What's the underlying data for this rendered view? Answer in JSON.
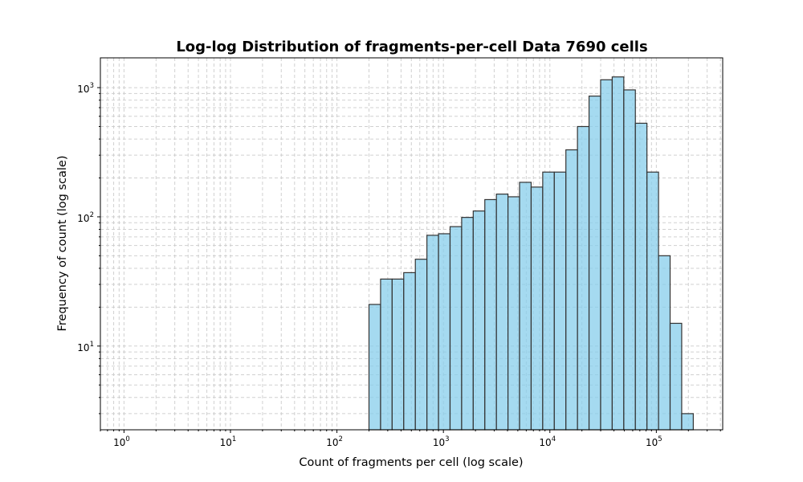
{
  "chart_data": {
    "type": "bar",
    "title": "Log-log Distribution of fragments-per-cell Data 7690 cells",
    "xlabel": "Count of fragments per cell (log scale)",
    "ylabel": "Frequency of count (log scale)",
    "xscale": "log",
    "yscale": "log",
    "xlim": [
      0.6,
      420000
    ],
    "ylim": [
      2.25,
      1700
    ],
    "grid": true,
    "bar_color": "#87CEEB",
    "edge_color": "#333333",
    "x_ticks": [
      {
        "base": "10",
        "exp": "0",
        "value": 1
      },
      {
        "base": "10",
        "exp": "1",
        "value": 10
      },
      {
        "base": "10",
        "exp": "2",
        "value": 100
      },
      {
        "base": "10",
        "exp": "3",
        "value": 1000
      },
      {
        "base": "10",
        "exp": "4",
        "value": 10000
      },
      {
        "base": "10",
        "exp": "5",
        "value": 100000
      }
    ],
    "y_ticks": [
      {
        "base": "10",
        "exp": "1",
        "value": 10
      },
      {
        "base": "10",
        "exp": "2",
        "value": 100
      },
      {
        "base": "10",
        "exp": "3",
        "value": 1000
      }
    ],
    "bins": [
      {
        "x0": 200,
        "x1": 257,
        "count": 21
      },
      {
        "x0": 257,
        "x1": 330,
        "count": 33
      },
      {
        "x0": 330,
        "x1": 424,
        "count": 33
      },
      {
        "x0": 424,
        "x1": 545,
        "count": 37
      },
      {
        "x0": 545,
        "x1": 700,
        "count": 47
      },
      {
        "x0": 700,
        "x1": 899,
        "count": 72
      },
      {
        "x0": 899,
        "x1": 1155,
        "count": 74
      },
      {
        "x0": 1155,
        "x1": 1484,
        "count": 84
      },
      {
        "x0": 1484,
        "x1": 1906,
        "count": 99
      },
      {
        "x0": 1906,
        "x1": 2449,
        "count": 111
      },
      {
        "x0": 2449,
        "x1": 3146,
        "count": 136
      },
      {
        "x0": 3146,
        "x1": 4041,
        "count": 150
      },
      {
        "x0": 4041,
        "x1": 5191,
        "count": 143
      },
      {
        "x0": 5191,
        "x1": 6669,
        "count": 185
      },
      {
        "x0": 6669,
        "x1": 8567,
        "count": 170
      },
      {
        "x0": 8567,
        "x1": 11005,
        "count": 222
      },
      {
        "x0": 11005,
        "x1": 14137,
        "count": 222
      },
      {
        "x0": 14137,
        "x1": 18161,
        "count": 330
      },
      {
        "x0": 18161,
        "x1": 23330,
        "count": 500
      },
      {
        "x0": 23330,
        "x1": 29970,
        "count": 860
      },
      {
        "x0": 29970,
        "x1": 38500,
        "count": 1150
      },
      {
        "x0": 38500,
        "x1": 49458,
        "count": 1210
      },
      {
        "x0": 49458,
        "x1": 63535,
        "count": 960
      },
      {
        "x0": 63535,
        "x1": 81619,
        "count": 530
      },
      {
        "x0": 81619,
        "x1": 104850,
        "count": 222
      },
      {
        "x0": 104850,
        "x1": 134693,
        "count": 50
      },
      {
        "x0": 134693,
        "x1": 173030,
        "count": 15
      },
      {
        "x0": 173030,
        "x1": 222278,
        "count": 3
      }
    ]
  }
}
